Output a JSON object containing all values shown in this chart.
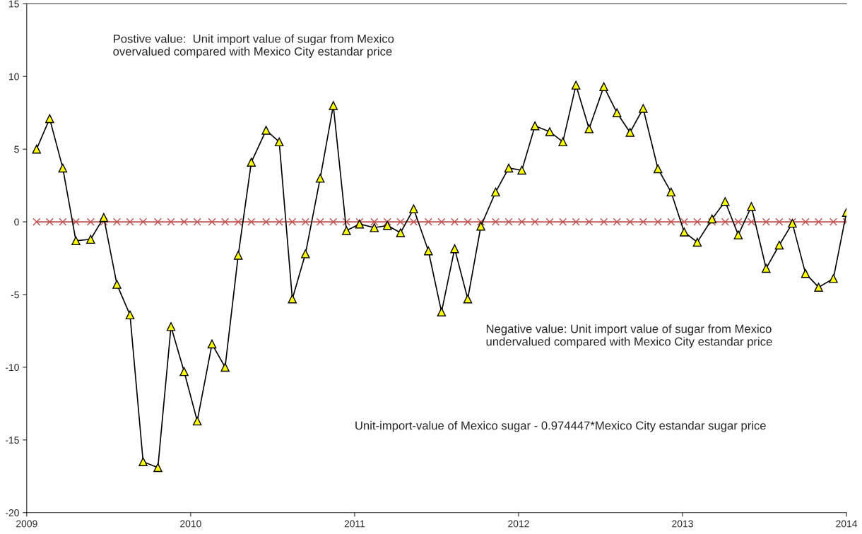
{
  "chart_data": {
    "type": "line",
    "x": [
      2009.06,
      2009.14,
      2009.22,
      2009.3,
      2009.39,
      2009.47,
      2009.55,
      2009.63,
      2009.71,
      2009.8,
      2009.88,
      2009.96,
      2010.04,
      2010.13,
      2010.21,
      2010.29,
      2010.37,
      2010.46,
      2010.54,
      2010.62,
      2010.7,
      2010.79,
      2010.87,
      2010.95,
      2011.03,
      2011.12,
      2011.2,
      2011.28,
      2011.36,
      2011.45,
      2011.53,
      2011.61,
      2011.69,
      2011.77,
      2011.86,
      2011.94,
      2012.02,
      2012.1,
      2012.19,
      2012.27,
      2012.35,
      2012.43,
      2012.52,
      2012.6,
      2012.68,
      2012.76,
      2012.85,
      2012.93,
      2013.01,
      2013.09,
      2013.18,
      2013.26,
      2013.34,
      2013.42,
      2013.51,
      2013.59,
      2013.67,
      2013.75,
      2013.83,
      2013.92,
      2014.0
    ],
    "series": [
      {
        "color": "#000000",
        "marker": "triangle",
        "values": [
          5.0,
          7.1,
          3.7,
          -1.3,
          -1.2,
          0.3,
          -4.3,
          -6.4,
          -16.5,
          -16.9,
          -7.2,
          -10.3,
          -13.7,
          -8.4,
          -10.0,
          -2.3,
          4.1,
          6.3,
          5.5,
          -5.3,
          -2.2,
          3.0,
          8.0,
          -0.6,
          -0.15,
          -0.4,
          -0.25,
          -0.75,
          0.9,
          -2.0,
          -6.2,
          -1.85,
          -5.3,
          -0.3,
          2.05,
          3.7,
          3.55,
          6.6,
          6.2,
          5.5,
          9.4,
          6.4,
          9.3,
          7.5,
          6.15,
          7.8,
          3.65,
          2.05,
          -0.7,
          -1.4,
          0.2,
          1.4,
          -0.9,
          1.05,
          -3.2,
          -1.6,
          -0.1,
          -3.55,
          -4.5,
          -3.9,
          0.65
        ]
      },
      {
        "color": "#c0504d",
        "marker": "cross",
        "values": [
          0,
          0,
          0,
          0,
          0,
          0,
          0,
          0,
          0,
          0,
          0,
          0,
          0,
          0,
          0,
          0,
          0,
          0,
          0,
          0,
          0,
          0,
          0,
          0,
          0,
          0,
          0,
          0,
          0,
          0,
          0,
          0,
          0,
          0,
          0,
          0,
          0,
          0,
          0,
          0,
          0,
          0,
          0,
          0,
          0,
          0,
          0,
          0,
          0,
          0,
          0,
          0,
          0,
          0,
          0,
          0,
          0,
          0,
          0,
          0,
          0
        ]
      }
    ],
    "xlim": [
      2009,
      2014
    ],
    "xticks": [
      2009,
      2010,
      2011,
      2012,
      2013,
      2014
    ],
    "ylim": [
      -20,
      15
    ],
    "yticks": [
      -20,
      -15,
      -10,
      -5,
      0,
      5,
      10,
      15
    ],
    "grid": false,
    "annotations": [
      "Postive value:  Unit import value of sugar from Mexico\novervalued compared with Mexico City estandar price",
      "Negative value: Unit import value of sugar from Mexico\nundervalued compared with Mexico City estandar price",
      "Unit-import-value of Mexico sugar - 0.974447*Mexico City estandar sugar price"
    ]
  }
}
